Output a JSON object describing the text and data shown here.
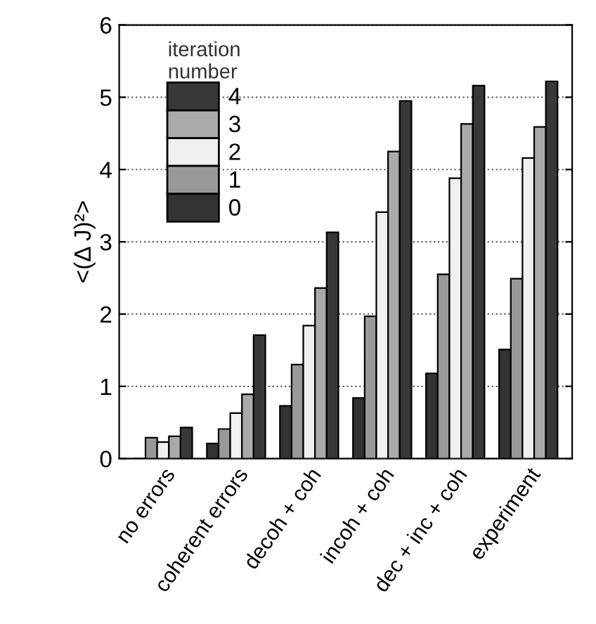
{
  "chart_data": {
    "type": "bar",
    "ylabel": "<(Δ J)²>",
    "legend_title": "iteration\nnumber",
    "legend": "top left",
    "categories": [
      "no errors",
      "coherent errors",
      "decoh + coh",
      "incoh + coh",
      "dec + inc + coh",
      "experiment"
    ],
    "series": [
      {
        "name": "0",
        "color": "#333333",
        "values": [
          0,
          0.21,
          0.73,
          0.84,
          1.18,
          1.51
        ]
      },
      {
        "name": "1",
        "color": "#999999",
        "values": [
          0.29,
          0.41,
          1.3,
          1.97,
          2.55,
          2.49
        ]
      },
      {
        "name": "2",
        "color": "#f0f0f0",
        "values": [
          0.23,
          0.63,
          1.84,
          3.41,
          3.88,
          4.16
        ]
      },
      {
        "name": "3",
        "color": "#aaaaaa",
        "values": [
          0.31,
          0.89,
          2.36,
          4.25,
          4.63,
          4.59
        ]
      },
      {
        "name": "4",
        "color": "#383838",
        "values": [
          0.43,
          1.71,
          3.13,
          4.95,
          5.16,
          5.22
        ]
      }
    ],
    "ylim": [
      0,
      6
    ],
    "yticks": [
      0,
      1,
      2,
      3,
      4,
      5,
      6
    ],
    "grid": "y"
  }
}
